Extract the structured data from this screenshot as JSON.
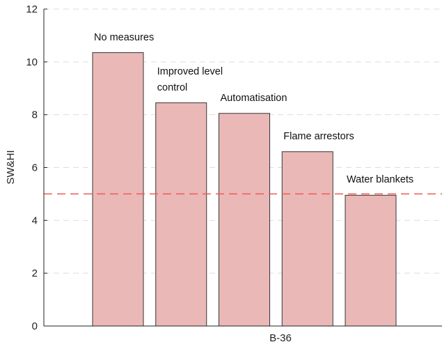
{
  "chart_data": {
    "type": "bar",
    "x_label": "B-36",
    "y_label": "SW&HI",
    "categories": [
      "No measures",
      "Improved level control",
      "Automatisation",
      "Flame arrestors",
      "Water blankets"
    ],
    "values": [
      10.35,
      8.45,
      8.05,
      6.6,
      4.95
    ],
    "color": "#ebb8b8",
    "threshold": 5.0,
    "threshold_color": "#ee5a52",
    "ylim": [
      0,
      12
    ],
    "yticks": [
      0,
      2,
      4,
      6,
      8,
      10,
      12
    ],
    "grid": true
  }
}
